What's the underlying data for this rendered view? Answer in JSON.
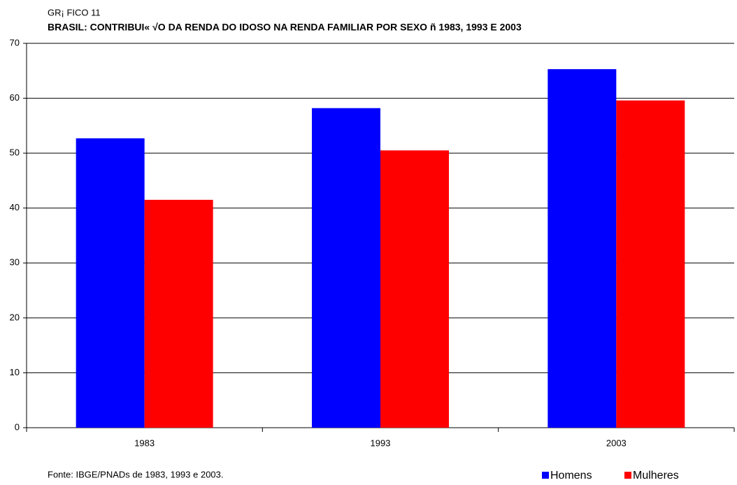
{
  "chart_data": {
    "type": "bar",
    "subtitle": "GR¡ FICO 11",
    "title": "BRASIL: CONTRIBUI« √O DA RENDA DO IDOSO NA RENDA FAMILIAR POR SEXO ñ 1983, 1993 E 2003",
    "source": "Fonte: IBGE/PNADs de 1983, 1993 e 2003.",
    "categories": [
      "1983",
      "1993",
      "2003"
    ],
    "series": [
      {
        "name": "Homens",
        "color": "#0000ff",
        "values": [
          52.7,
          58.2,
          65.3
        ]
      },
      {
        "name": "Mulheres",
        "color": "#ff0000",
        "values": [
          41.5,
          50.5,
          59.6
        ]
      }
    ],
    "ylim": [
      0,
      70
    ],
    "yticks": [
      0,
      10,
      20,
      30,
      40,
      50,
      60,
      70
    ],
    "grid": true,
    "legend": "bottom-right"
  }
}
